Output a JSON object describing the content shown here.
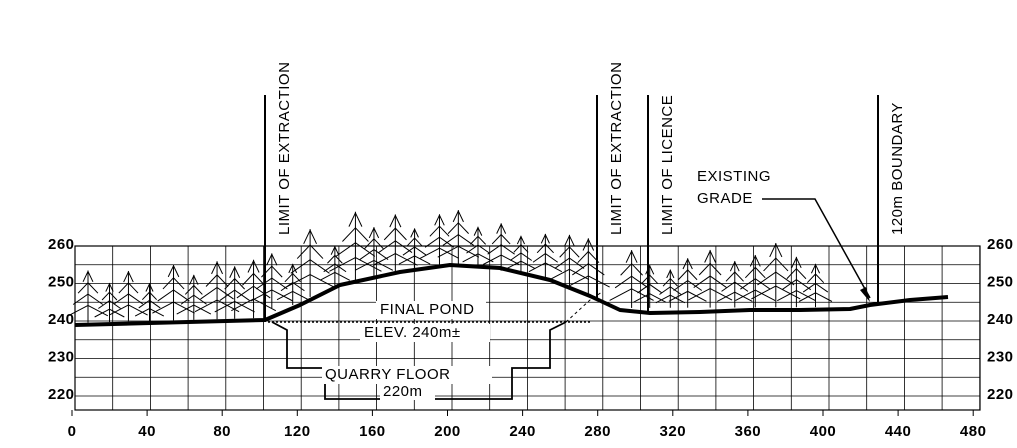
{
  "x_axis": {
    "labels": [
      "0",
      "40",
      "80",
      "120",
      "160",
      "200",
      "240",
      "280",
      "320",
      "360",
      "400",
      "440",
      "480"
    ]
  },
  "y_axis": {
    "labels": [
      "260",
      "250",
      "240",
      "230",
      "220"
    ]
  },
  "annotations": {
    "limit_extraction_left": "LIMIT OF EXTRACTION",
    "limit_extraction_right": "LIMIT OF EXTRACTION",
    "limit_licence": "LIMIT OF LICENCE",
    "boundary": "120m BOUNDARY",
    "existing_grade_1": "EXISTING",
    "existing_grade_2": "GRADE",
    "final_pond": "FINAL POND",
    "pond_elev": "ELEV. 240m±",
    "quarry_floor": "QUARRY FLOOR",
    "floor_elev": "220m"
  }
}
